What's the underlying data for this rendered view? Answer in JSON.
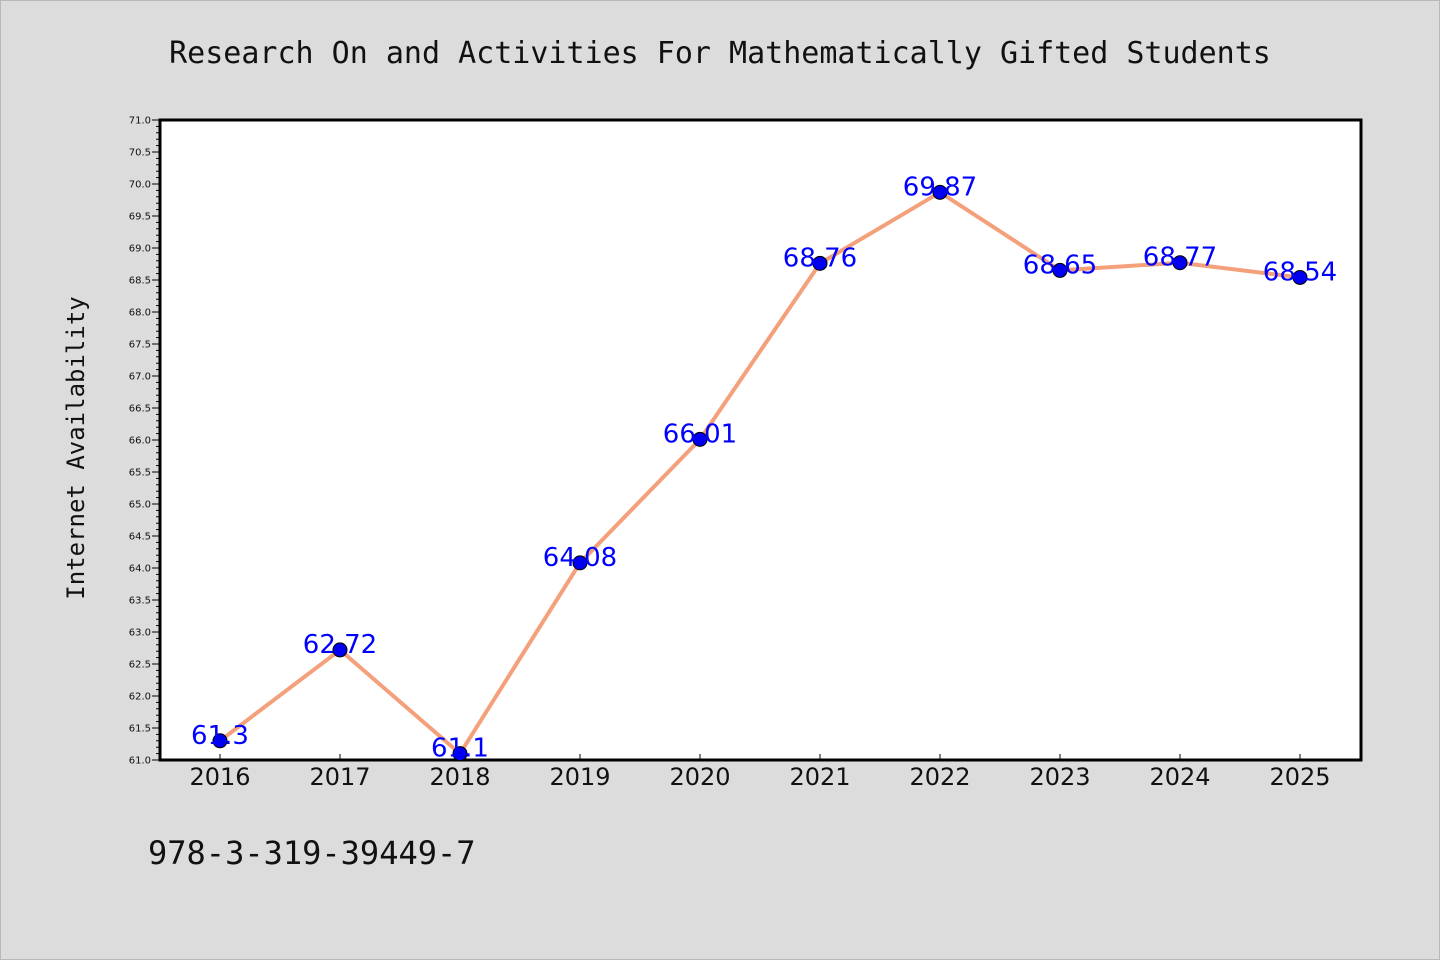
{
  "chart_data": {
    "type": "line",
    "title": "Research On and Activities For Mathematically Gifted Students",
    "xlabel": "",
    "ylabel": "Internet Availability",
    "categories": [
      "2016",
      "2017",
      "2018",
      "2019",
      "2020",
      "2021",
      "2022",
      "2023",
      "2024",
      "2025"
    ],
    "series": [
      {
        "values": [
          61.3,
          62.72,
          61.1,
          64.08,
          66.01,
          68.76,
          69.87,
          68.65,
          68.77,
          68.54
        ],
        "labels": [
          "61.3",
          "62.72",
          "61.1",
          "64.08",
          "66.01",
          "68.76",
          "69.87",
          "68.65",
          "68.77",
          "68.54"
        ],
        "line_color": "#f4a07a",
        "marker_color": "#0000ee"
      }
    ],
    "ylim": [
      61.0,
      71.0
    ],
    "yticks": [
      "61.0",
      "61.5",
      "62.0",
      "62.5",
      "63.0",
      "63.5",
      "64.0",
      "64.5",
      "65.0",
      "65.5",
      "66.0",
      "66.5",
      "67.0",
      "67.5",
      "68.0",
      "68.5",
      "69.0",
      "69.5",
      "70.0",
      "70.5",
      "71.0"
    ],
    "grid": false,
    "legend": "none"
  },
  "footnote": "978-3-319-39449-7",
  "colors": {
    "background": "#dcdcdc",
    "plot_background": "#ffffff",
    "line": "#f4a07a",
    "marker": "#0000ee",
    "data_label": "#0000ff"
  }
}
